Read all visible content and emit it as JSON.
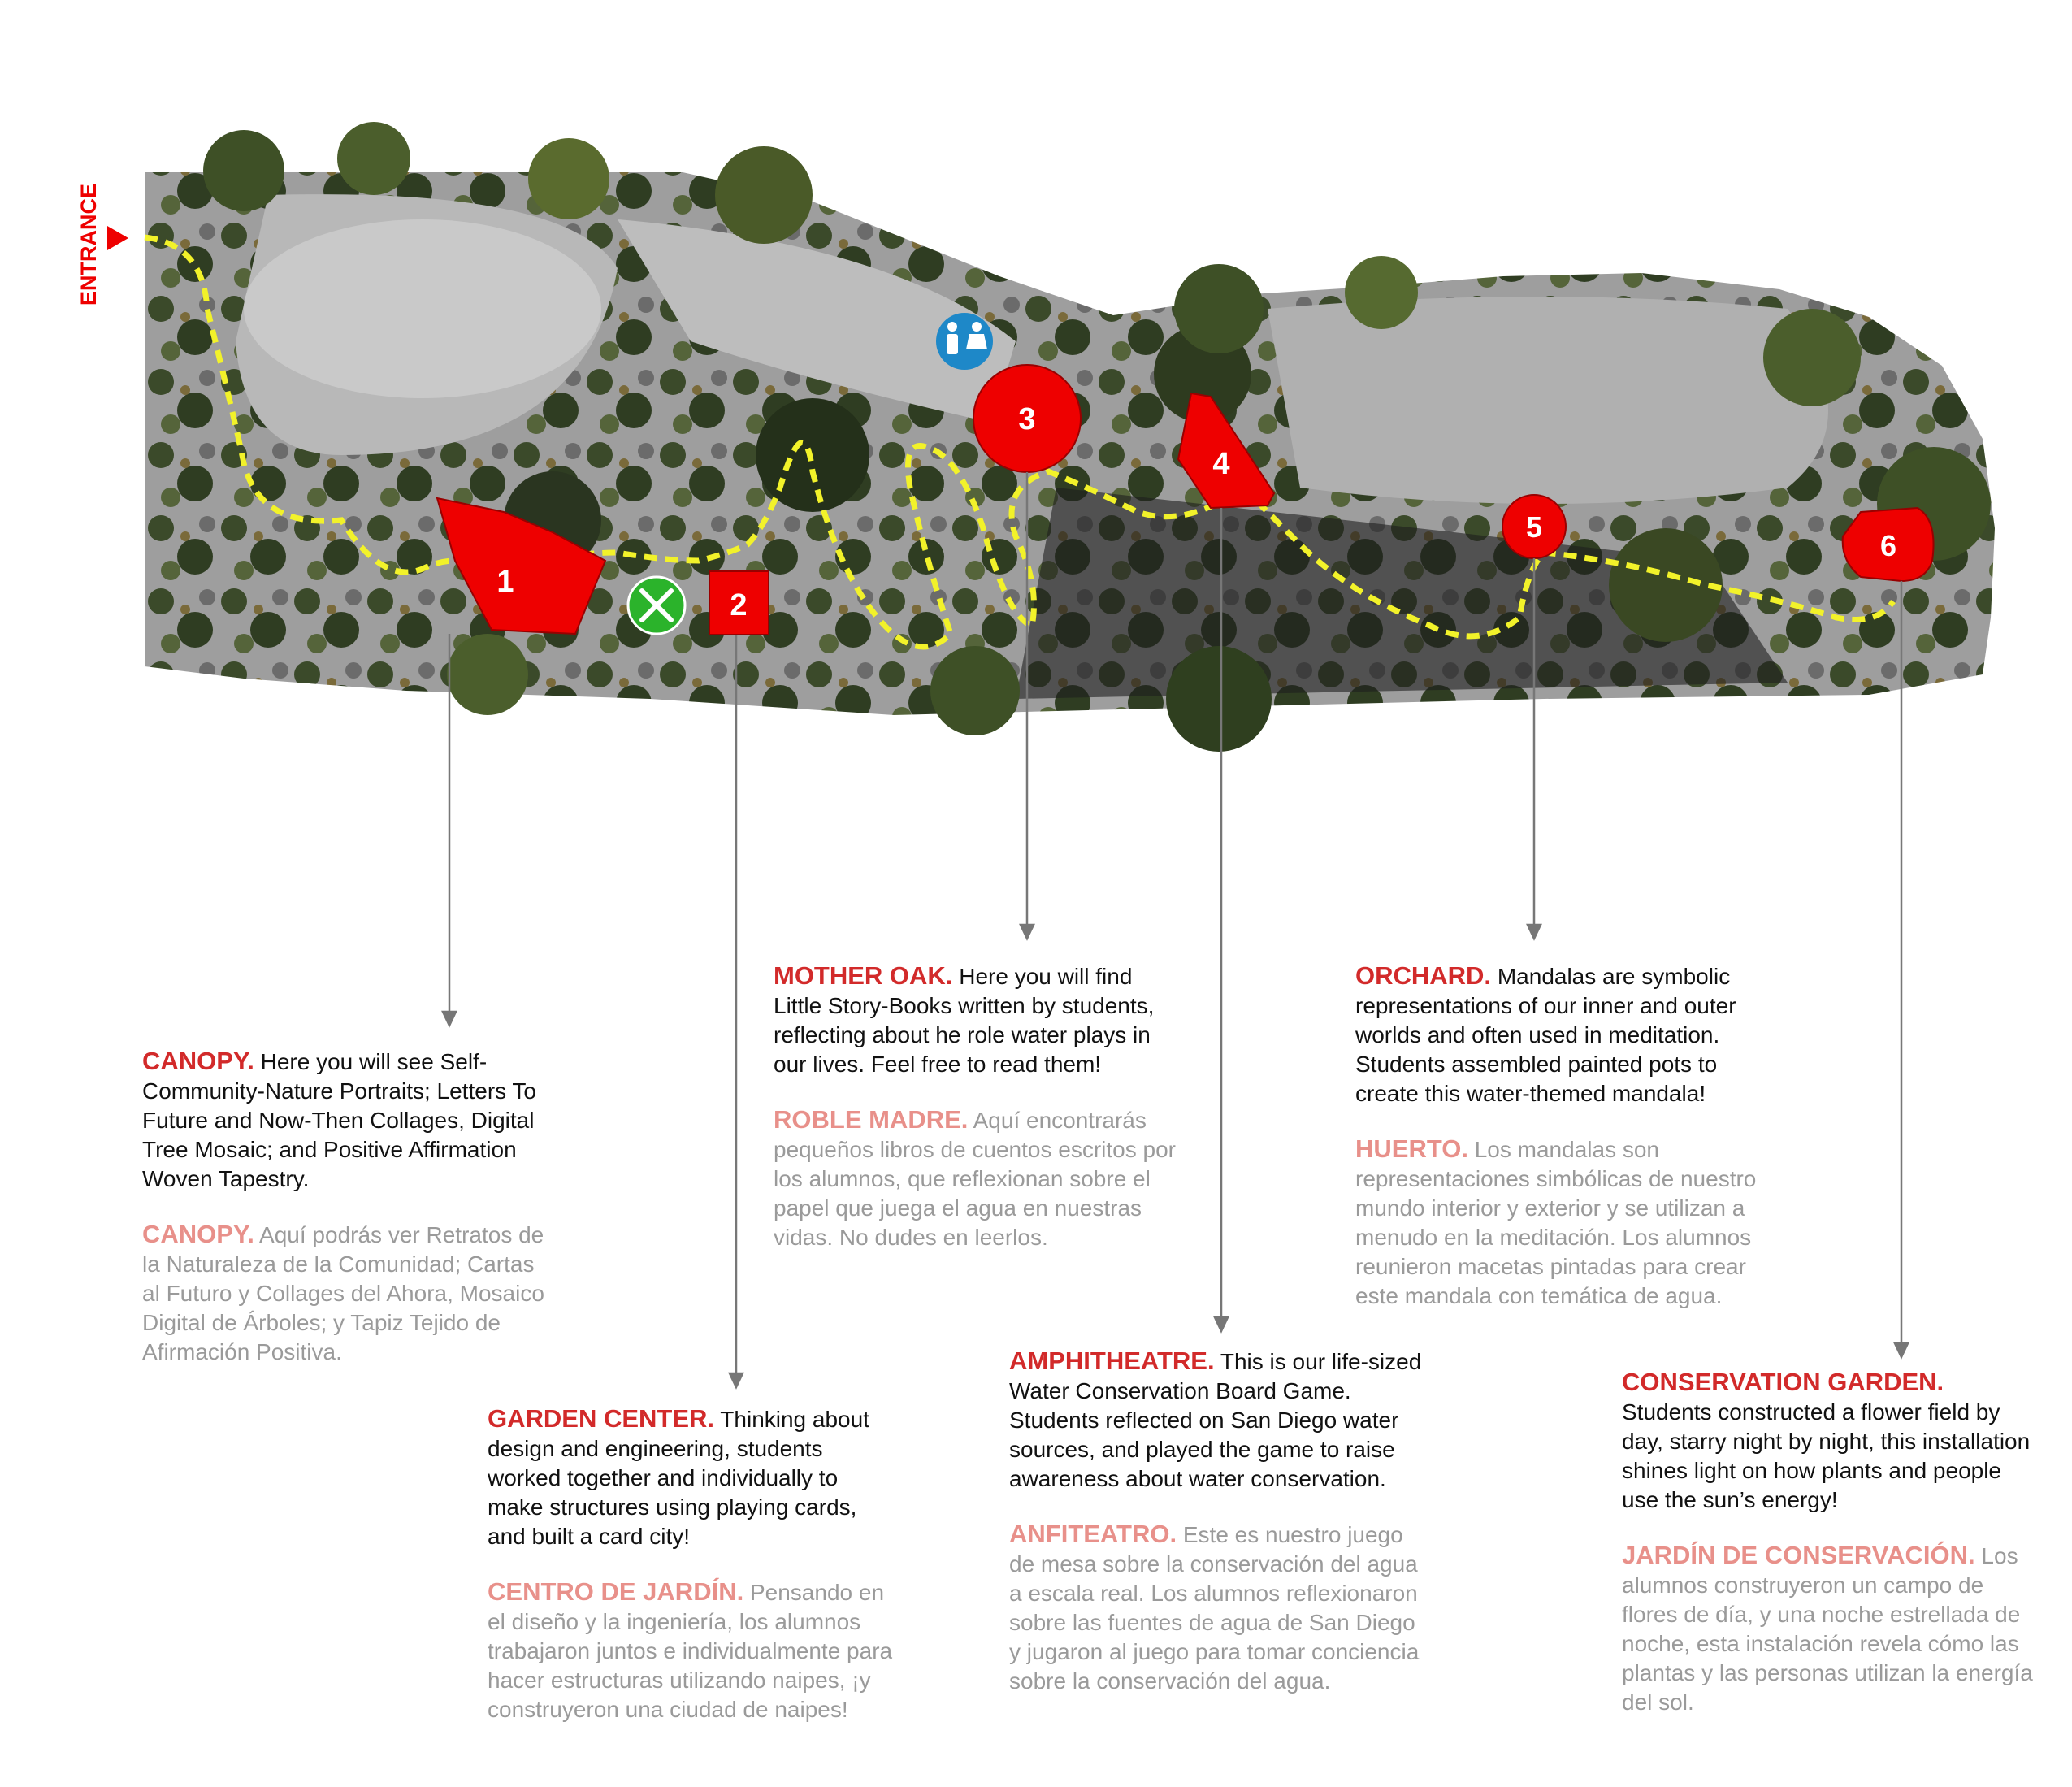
{
  "entrance_label": "ENTRANCE",
  "colors": {
    "marker_red": "#ee0000",
    "path_yellow": "#f2f22a",
    "food_green": "#2bb32b",
    "restroom_blue": "#1e88c8",
    "title_red": "#d22a2a",
    "title_pink": "#e8908a",
    "spanish_gray": "#9a9a9a"
  },
  "amenities": [
    {
      "name": "restroom",
      "icon": "restroom-icon"
    },
    {
      "name": "food",
      "icon": "fork-knife-icon"
    }
  ],
  "stations": [
    {
      "number": "1",
      "en_title": "CANOPY.",
      "en_text": "Here you will see Self-Community-Nature Portraits; Letters To Future and Now-Then Collages, Digital Tree Mosaic; and Positive Affirmation Woven Tapestry.",
      "es_title": "CANOPY.",
      "es_text": "Aquí podrás ver Retratos de la Naturaleza de la Comunidad; Cartas al Futuro y Collages del Ahora, Mosaico Digital de Árboles; y Tapiz Tejido de Afirmación Positiva."
    },
    {
      "number": "2",
      "en_title": "GARDEN CENTER.",
      "en_text": "Thinking about design and engineering, students worked together and individually to make structures using playing cards, and built a card city!",
      "es_title": "CENTRO DE JARDÍN.",
      "es_text": "Pensando en el diseño y la ingeniería, los alumnos trabajaron juntos e individualmente para hacer estructuras utilizando naipes, ¡y construyeron una ciudad de naipes!"
    },
    {
      "number": "3",
      "en_title": "MOTHER OAK.",
      "en_text": "Here you will find Little Story-Books written by students, reflecting about he role water plays in our lives. Feel free to read them!",
      "es_title": "ROBLE MADRE.",
      "es_text": "Aquí encontrarás pequeños libros de cuentos escritos por los alumnos, que reflexionan sobre el papel que juega el agua en nuestras vidas. No dudes en leerlos."
    },
    {
      "number": "4",
      "en_title": "AMPHITHEATRE.",
      "en_text": "This is our life-sized Water Conservation Board Game. Students reflected on San Diego water sources, and played the game to raise awareness about water conservation.",
      "es_title": "ANFITEATRO.",
      "es_text": "Este es nuestro juego de mesa sobre la conservación del agua a escala real. Los alumnos reflexionaron sobre las fuentes de agua de San Diego y jugaron al juego para tomar conciencia sobre la conservación del agua."
    },
    {
      "number": "5",
      "en_title": "ORCHARD.",
      "en_text": "Mandalas are symbolic representations of our inner and outer worlds and often used in meditation. Students assembled painted pots to create this water-themed mandala!",
      "es_title": "HUERTO.",
      "es_text": "Los mandalas son representaciones simbólicas de nuestro mundo interior y exterior y se utilizan a menudo en la meditación. Los alumnos reunieron macetas pintadas para crear este mandala con temática de agua."
    },
    {
      "number": "6",
      "en_title": "CONSERVATION GARDEN.",
      "en_text": "Students constructed a flower field by day, starry night by night, this installation shines light on how plants and people use the sun’s energy!",
      "es_title": "JARDÍN DE CONSERVACIÓN.",
      "es_text": "Los alumnos construyeron un campo de flores de día, y una noche estrellada de noche, esta instalación revela cómo las plantas y las personas utilizan la energía del sol."
    }
  ]
}
